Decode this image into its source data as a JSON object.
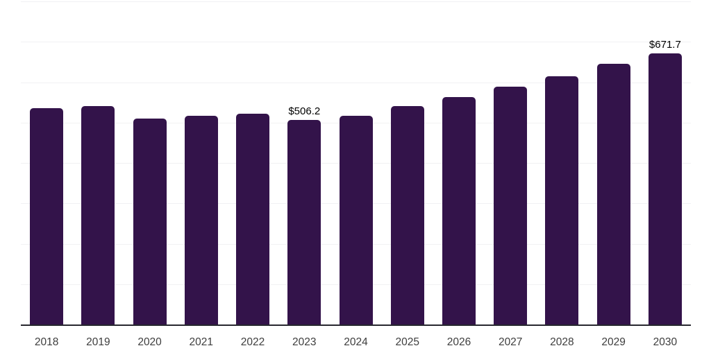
{
  "chart_data": {
    "type": "bar",
    "title": "",
    "categories": [
      "2018",
      "2019",
      "2020",
      "2021",
      "2022",
      "2023",
      "2024",
      "2025",
      "2026",
      "2027",
      "2028",
      "2029",
      "2030"
    ],
    "values": [
      536,
      541,
      510,
      517,
      522,
      506.2,
      516,
      540,
      563,
      589,
      615,
      645,
      671.7
    ],
    "visible_data_labels": [
      "",
      "",
      "",
      "",
      "",
      "$506.2",
      "",
      "",
      "",
      "",
      "",
      "",
      "$671.7"
    ],
    "value_prefix": "$",
    "xlabel": "",
    "ylabel": "",
    "ylim": [
      0,
      800
    ],
    "gridline_step": 100,
    "grid": true,
    "legend_position": "none",
    "y_axis_tick_labels_visible": false,
    "colors": {
      "bar": "#33134a",
      "axis_baseline": "#26262e",
      "gridline": "#f1f1f3",
      "data_label_text": "#000000",
      "x_tick_text": "#3d3d3d",
      "background": "#ffffff"
    }
  }
}
